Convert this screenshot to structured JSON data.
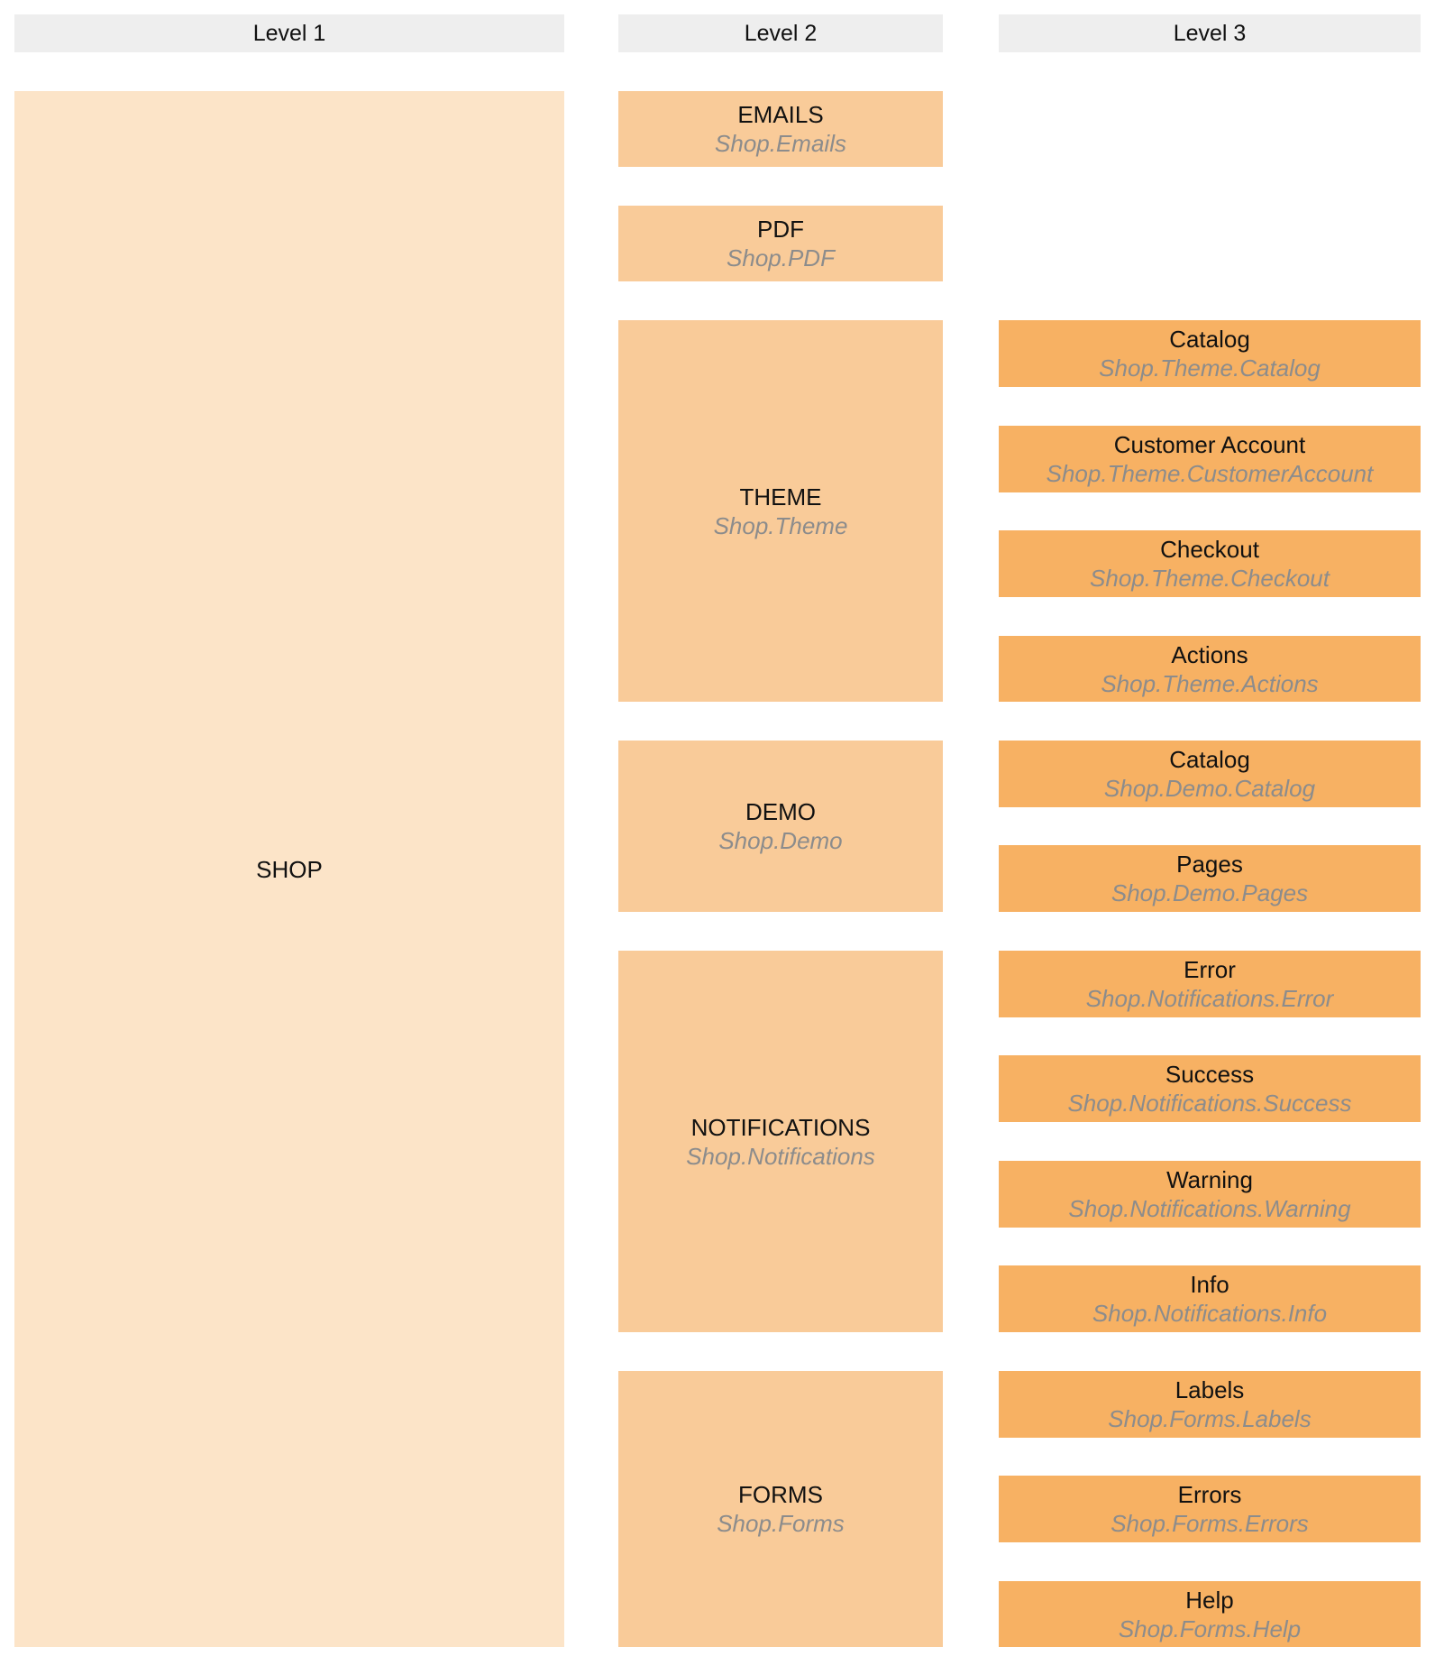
{
  "colors": {
    "header_bg": "#eeeeee",
    "level1": "#fce4c8",
    "level2": "#f9cb99",
    "level3": "#f7b163",
    "path_text": "#8c8c8c"
  },
  "headers": [
    "Level 1",
    "Level 2",
    "Level 3"
  ],
  "level1": [
    {
      "name": "SHOP",
      "path": ""
    }
  ],
  "level2": [
    {
      "name": "EMAILS",
      "path": "Shop.Emails"
    },
    {
      "name": "PDF",
      "path": "Shop.PDF"
    },
    {
      "name": "THEME",
      "path": "Shop.Theme"
    },
    {
      "name": "DEMO",
      "path": "Shop.Demo"
    },
    {
      "name": "NOTIFICATIONS",
      "path": "Shop.Notifications"
    },
    {
      "name": "FORMS",
      "path": "Shop.Forms"
    }
  ],
  "level3": [
    {
      "name": "Catalog",
      "path": "Shop.Theme.Catalog"
    },
    {
      "name": "Customer Account",
      "path": "Shop.Theme.CustomerAccount"
    },
    {
      "name": "Checkout",
      "path": "Shop.Theme.Checkout"
    },
    {
      "name": "Actions",
      "path": "Shop.Theme.Actions"
    },
    {
      "name": "Catalog",
      "path": "Shop.Demo.Catalog"
    },
    {
      "name": "Pages",
      "path": "Shop.Demo.Pages"
    },
    {
      "name": "Error",
      "path": "Shop.Notifications.Error"
    },
    {
      "name": "Success",
      "path": "Shop.Notifications.Success"
    },
    {
      "name": "Warning",
      "path": "Shop.Notifications.Warning"
    },
    {
      "name": "Info",
      "path": "Shop.Notifications.Info"
    },
    {
      "name": "Labels",
      "path": "Shop.Forms.Labels"
    },
    {
      "name": "Errors",
      "path": "Shop.Forms.Errors"
    },
    {
      "name": "Help",
      "path": "Shop.Forms.Help"
    }
  ]
}
